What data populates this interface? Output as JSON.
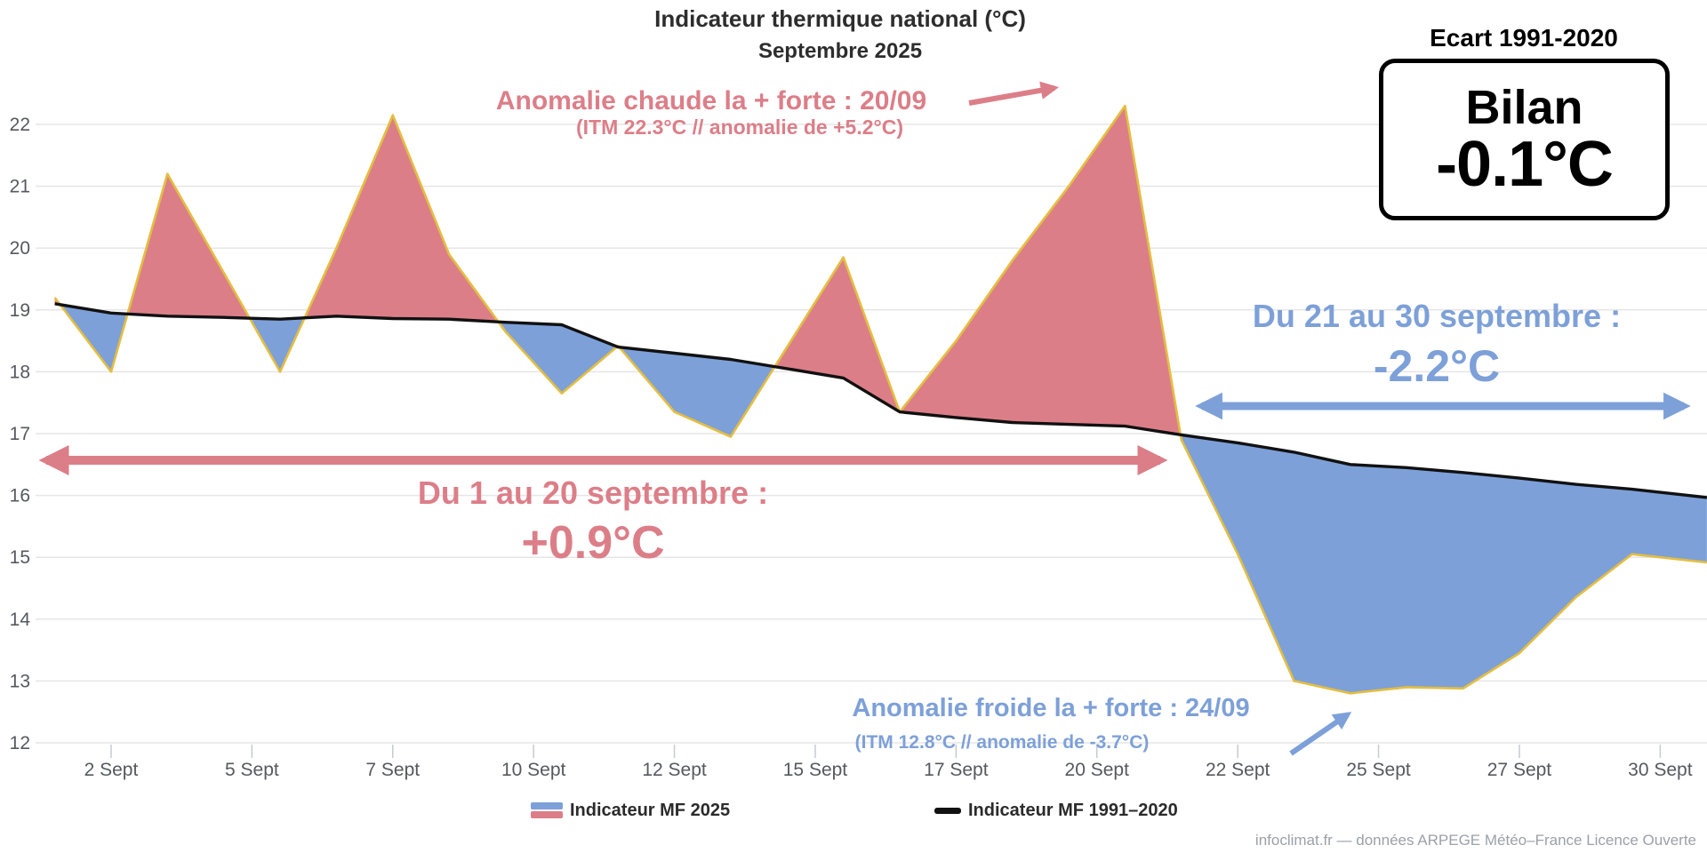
{
  "title": {
    "line1": "Indicateur thermique national (°C)",
    "line2": "Septembre 2025"
  },
  "bilan_box": {
    "heading": "Ecart 1991-2020",
    "title": "Bilan",
    "value": "-0.1°C"
  },
  "annotations": {
    "warm_peak": {
      "line1": "Anomalie chaude la + forte : 20/09",
      "line2": "(ITM 22.3°C // anomalie de +5.2°C)"
    },
    "warm_period": {
      "line1": "Du 1 au 20 septembre :",
      "value": "+0.9°C"
    },
    "cold_period": {
      "line1": "Du 21 au 30 septembre :",
      "value": "-2.2°C"
    },
    "cold_peak": {
      "line1": "Anomalie froide la + forte : 24/09",
      "line2": "(ITM 12.8°C // anomalie de -3.7°C)"
    }
  },
  "legend": {
    "series1_label": "Indicateur MF",
    "series1_year": "2025",
    "series2_label": "Indicateur MF",
    "series2_year": "1991–2020"
  },
  "footer": "infoclimat.fr — données ARPEGE Météo–France Licence Ouverte",
  "colors": {
    "warm_fill": "#DC7E88",
    "cold_fill": "#7DA0D8",
    "line_2025": "#E4BE41",
    "line_normal": "#111111",
    "grid": "#e6e6e6",
    "tick": "#c5cbd3",
    "axis_label": "#55595f"
  },
  "chart_data": {
    "type": "area",
    "title": "Indicateur thermique national (°C) — Septembre 2025",
    "x_unit": "jour de septembre 2025",
    "ylim": [
      12,
      22
    ],
    "grid": true,
    "legend_position": "bottom",
    "y_ticks": [
      12,
      13,
      14,
      15,
      16,
      17,
      18,
      19,
      20,
      21,
      22
    ],
    "x_ticks": [
      {
        "day": 2,
        "label": "2 Sept"
      },
      {
        "day": 4.5,
        "label": "5 Sept"
      },
      {
        "day": 7,
        "label": "7 Sept"
      },
      {
        "day": 9.5,
        "label": "10 Sept"
      },
      {
        "day": 12,
        "label": "12 Sept"
      },
      {
        "day": 14.5,
        "label": "15 Sept"
      },
      {
        "day": 17,
        "label": "17 Sept"
      },
      {
        "day": 19.5,
        "label": "20 Sept"
      },
      {
        "day": 22,
        "label": "22 Sept"
      },
      {
        "day": 24.5,
        "label": "25 Sept"
      },
      {
        "day": 27,
        "label": "27 Sept"
      },
      {
        "day": 29.5,
        "label": "30 Sept"
      }
    ],
    "x": [
      1,
      2,
      3,
      4,
      5,
      6,
      7,
      8,
      9,
      10,
      11,
      12,
      13,
      14,
      15,
      16,
      17,
      18,
      19,
      20,
      21,
      22,
      23,
      24,
      25,
      26,
      27,
      28,
      29,
      30
    ],
    "series": [
      {
        "name": "Indicateur MF 2025",
        "values": [
          19.2,
          18.0,
          21.2,
          19.6,
          18.0,
          20.0,
          22.15,
          19.9,
          18.65,
          17.65,
          18.42,
          17.35,
          16.95,
          18.4,
          19.85,
          17.35,
          18.5,
          19.8,
          21.0,
          22.3,
          16.9,
          15.05,
          13.0,
          12.8,
          12.9,
          12.88,
          13.45,
          14.35,
          15.05,
          14.95
        ]
      },
      {
        "name": "Indicateur MF 1991–2020",
        "values": [
          19.1,
          18.95,
          18.9,
          18.88,
          18.85,
          18.9,
          18.86,
          18.85,
          18.8,
          18.76,
          18.4,
          18.3,
          18.2,
          18.05,
          17.9,
          17.35,
          17.26,
          17.18,
          17.15,
          17.12,
          16.98,
          16.85,
          16.7,
          16.5,
          16.45,
          16.37,
          16.28,
          16.18,
          16.1,
          16.0
        ]
      }
    ]
  }
}
